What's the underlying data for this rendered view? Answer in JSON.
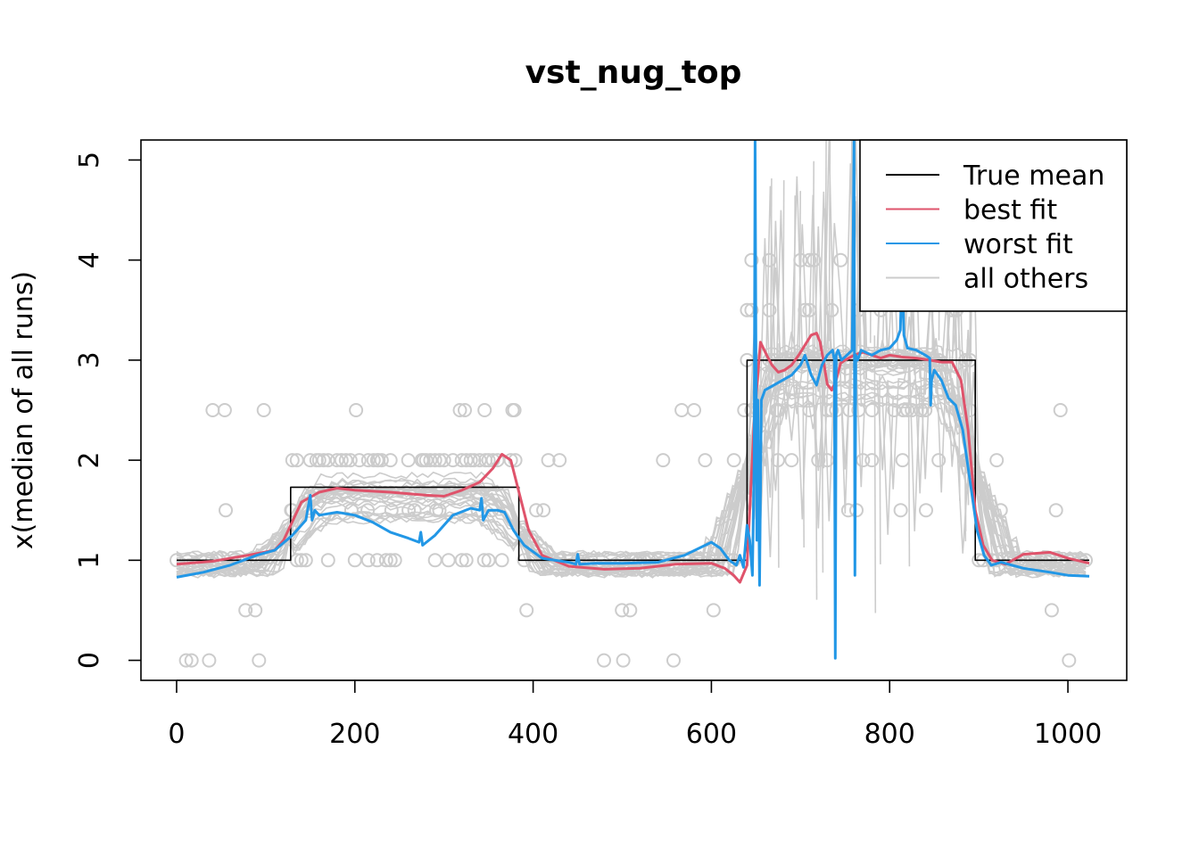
{
  "chart_data": {
    "type": "line",
    "title": "vst_nug_top",
    "xlabel": "",
    "ylabel": "x(median of all runs)",
    "xlim": [
      -40,
      1066
    ],
    "ylim": [
      -0.2,
      5.2
    ],
    "xticks": [
      0,
      200,
      400,
      600,
      800,
      1000
    ],
    "yticks": [
      0,
      1,
      2,
      3,
      4,
      5
    ],
    "xtick_labels": [
      "0",
      "200",
      "400",
      "600",
      "800",
      "1000"
    ],
    "ytick_labels": [
      "0",
      "1",
      "2",
      "3",
      "4",
      "5"
    ],
    "legend": {
      "position": "top-right",
      "entries": [
        {
          "label": "True mean",
          "color": "#000000"
        },
        {
          "label": "best fit",
          "color": "#DF536B"
        },
        {
          "label": "worst fit",
          "color": "#2297E6"
        },
        {
          "label": "all others",
          "color": "#CCCCCC"
        }
      ]
    },
    "true_mean": {
      "name": "True mean",
      "color": "#000000",
      "x": [
        0,
        128,
        128,
        384,
        384,
        640,
        640,
        896,
        896,
        1024
      ],
      "y": [
        1,
        1,
        1.73,
        1.73,
        1,
        1,
        3,
        3,
        1,
        1
      ]
    },
    "best_fit": {
      "name": "best fit",
      "color": "#DF536B",
      "x": [
        0,
        40,
        80,
        110,
        120,
        128,
        140,
        160,
        180,
        200,
        240,
        280,
        300,
        320,
        340,
        355,
        365,
        375,
        385,
        395,
        410,
        440,
        480,
        520,
        560,
        600,
        615,
        625,
        632,
        640,
        648,
        655,
        662,
        668,
        675,
        682,
        690,
        698,
        705,
        712,
        718,
        722,
        726,
        730,
        735,
        740,
        745,
        750,
        760,
        770,
        780,
        790,
        800,
        815,
        830,
        845,
        858,
        870,
        880,
        888,
        896,
        905,
        915,
        930,
        950,
        980,
        1000,
        1024
      ],
      "y": [
        0.96,
        0.99,
        1.05,
        1.1,
        1.2,
        1.35,
        1.58,
        1.68,
        1.72,
        1.7,
        1.68,
        1.65,
        1.64,
        1.7,
        1.78,
        1.92,
        2.06,
        2.0,
        1.65,
        1.3,
        1.05,
        0.94,
        0.91,
        0.92,
        0.96,
        0.97,
        0.92,
        0.85,
        0.78,
        0.95,
        2.4,
        3.18,
        3.05,
        2.95,
        2.88,
        2.9,
        2.95,
        3.05,
        3.15,
        3.25,
        3.27,
        3.18,
        2.98,
        2.76,
        2.7,
        2.8,
        2.97,
        3.0,
        3.05,
        3.08,
        3.05,
        3.02,
        3.05,
        3.03,
        3.02,
        3.0,
        2.98,
        2.98,
        2.8,
        2.3,
        1.5,
        1.15,
        1.0,
        0.96,
        1.06,
        1.08,
        1.02,
        0.97
      ]
    },
    "worst_fit": {
      "name": "worst fit",
      "color": "#2297E6",
      "x": [
        0,
        30,
        60,
        90,
        110,
        130,
        145,
        150,
        152,
        155,
        160,
        180,
        200,
        220,
        240,
        260,
        272,
        274,
        276,
        290,
        310,
        330,
        340,
        342,
        344,
        350,
        360,
        368,
        378,
        390,
        410,
        440,
        448,
        450,
        452,
        470,
        500,
        540,
        570,
        600,
        610,
        620,
        628,
        632,
        636,
        640,
        643,
        646,
        648,
        649,
        650,
        651,
        652,
        654,
        656,
        660,
        670,
        680,
        690,
        700,
        705,
        712,
        718,
        724,
        730,
        736,
        738,
        739,
        740,
        742,
        746,
        752,
        758,
        760,
        761,
        762,
        764,
        768,
        780,
        790,
        800,
        808,
        812,
        814,
        816,
        820,
        830,
        840,
        845,
        846,
        847,
        850,
        858,
        866,
        874,
        882,
        890,
        898,
        906,
        914,
        925,
        950,
        980,
        1000,
        1024
      ],
      "y": [
        0.83,
        0.88,
        0.95,
        1.05,
        1.1,
        1.25,
        1.4,
        1.65,
        1.4,
        1.5,
        1.45,
        1.48,
        1.45,
        1.38,
        1.28,
        1.22,
        1.18,
        1.28,
        1.15,
        1.25,
        1.45,
        1.52,
        1.5,
        1.62,
        1.4,
        1.5,
        1.5,
        1.48,
        1.3,
        1.15,
        1.02,
        0.98,
        0.96,
        1.06,
        0.96,
        0.97,
        0.97,
        0.98,
        1.05,
        1.18,
        1.12,
        1.0,
        0.95,
        1.05,
        0.93,
        1.35,
        1.2,
        0.85,
        2.0,
        5.8,
        3.0,
        1.2,
        2.6,
        0.75,
        2.6,
        2.7,
        2.75,
        2.8,
        2.85,
        2.95,
        3.05,
        2.85,
        2.75,
        2.95,
        3.05,
        3.1,
        3.0,
        0.02,
        3.05,
        3.1,
        3.0,
        3.05,
        3.1,
        5.5,
        0.85,
        3.05,
        3.0,
        3.1,
        3.05,
        3.1,
        3.12,
        3.2,
        3.3,
        3.9,
        3.25,
        3.12,
        3.1,
        3.05,
        3.02,
        2.55,
        2.8,
        2.9,
        2.8,
        2.62,
        2.55,
        2.3,
        1.8,
        1.3,
        1.05,
        0.95,
        0.98,
        0.92,
        0.88,
        0.85,
        0.84
      ]
    },
    "others_shown": "many grey lines and open-circle markers",
    "others_color": "#CCCCCC",
    "grid": false
  }
}
